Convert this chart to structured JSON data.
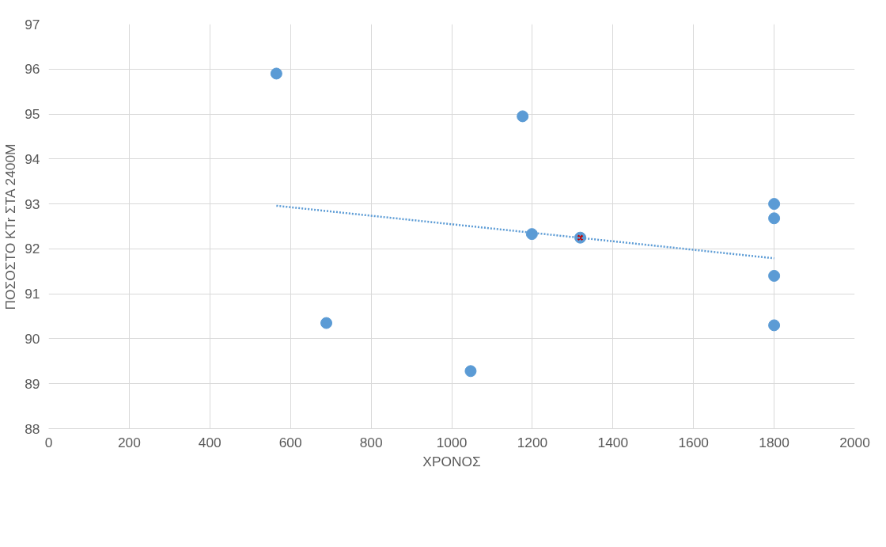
{
  "chart_data": {
    "type": "scatter",
    "xlabel": "ΧΡΟΝΟΣ",
    "ylabel": "ΠΟΣΟΣΤΟ KTr ΣΤΑ 2400M",
    "xlim": [
      0,
      2000
    ],
    "xticks": [
      0,
      200,
      400,
      600,
      800,
      1000,
      1200,
      1400,
      1600,
      1800,
      2000
    ],
    "ylim": [
      88,
      97
    ],
    "yticks": [
      88,
      89,
      90,
      91,
      92,
      93,
      94,
      95,
      96,
      97
    ],
    "grid": true,
    "series": [
      {
        "color": "#5b9bd5",
        "marker": "circle",
        "x": [
          565,
          1176,
          689,
          1047,
          1199,
          1319,
          1800,
          1800,
          1800,
          1800
        ],
        "values": [
          95.9,
          94.95,
          90.35,
          89.28,
          92.33,
          92.25,
          93.0,
          92.68,
          91.4,
          90.3
        ]
      },
      {
        "color": "#c00000",
        "marker": "cross",
        "x": [
          1319
        ],
        "values": [
          92.25
        ]
      },
      {
        "type": "line",
        "color": "#5b9bd5",
        "line_style": "dotted",
        "x": [
          565,
          1800
        ],
        "values": [
          92.96,
          91.79
        ]
      }
    ]
  }
}
